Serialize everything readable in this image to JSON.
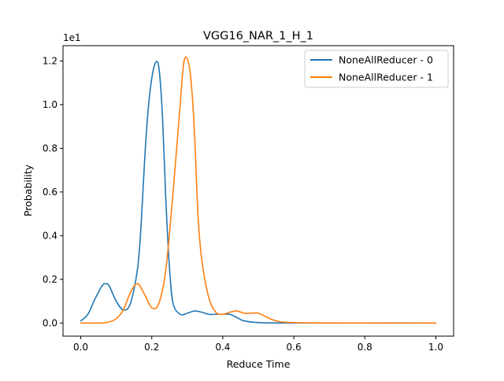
{
  "chart_data": {
    "type": "line",
    "title": "VGG16_NAR_1_H_1",
    "xlabel": "Reduce Time",
    "ylabel": "Probability",
    "y_offset_label": "1e1",
    "xlim": [
      -0.05,
      1.05
    ],
    "ylim": [
      -0.06,
      1.27
    ],
    "xticks": [
      "0.0",
      "0.2",
      "0.4",
      "0.6",
      "0.8",
      "1.0"
    ],
    "yticks": [
      "0.0",
      "0.2",
      "0.4",
      "0.6",
      "0.8",
      "1.0",
      "1.2"
    ],
    "legend_position": "top-right",
    "grid": false,
    "series": [
      {
        "name": "NoneAllReducer - 0",
        "color": "#1f77b4",
        "x": [
          0.0,
          0.02,
          0.04,
          0.06,
          0.07,
          0.08,
          0.1,
          0.12,
          0.14,
          0.16,
          0.17,
          0.18,
          0.19,
          0.2,
          0.21,
          0.22,
          0.23,
          0.24,
          0.25,
          0.26,
          0.28,
          0.3,
          0.32,
          0.34,
          0.36,
          0.38,
          0.4,
          0.42,
          0.44,
          0.46,
          0.5,
          0.6,
          0.8,
          1.0
        ],
        "y": [
          0.01,
          0.04,
          0.11,
          0.17,
          0.18,
          0.17,
          0.1,
          0.06,
          0.09,
          0.25,
          0.45,
          0.75,
          0.98,
          1.12,
          1.19,
          1.17,
          0.95,
          0.55,
          0.25,
          0.09,
          0.04,
          0.045,
          0.055,
          0.05,
          0.04,
          0.04,
          0.04,
          0.04,
          0.025,
          0.01,
          0.002,
          0.0,
          0.0,
          0.0
        ]
      },
      {
        "name": "NoneAllReducer - 1",
        "color": "#ff7f0e",
        "x": [
          0.0,
          0.06,
          0.08,
          0.1,
          0.12,
          0.14,
          0.16,
          0.18,
          0.2,
          0.22,
          0.24,
          0.26,
          0.28,
          0.29,
          0.3,
          0.31,
          0.32,
          0.33,
          0.34,
          0.36,
          0.38,
          0.4,
          0.42,
          0.44,
          0.46,
          0.48,
          0.5,
          0.52,
          0.55,
          0.6,
          0.8,
          1.0
        ],
        "y": [
          0.0,
          0.0,
          0.005,
          0.02,
          0.06,
          0.14,
          0.18,
          0.13,
          0.07,
          0.09,
          0.25,
          0.6,
          1.0,
          1.19,
          1.21,
          1.12,
          0.88,
          0.5,
          0.3,
          0.12,
          0.05,
          0.04,
          0.05,
          0.055,
          0.045,
          0.045,
          0.045,
          0.03,
          0.01,
          0.002,
          0.0,
          0.0
        ]
      }
    ]
  }
}
